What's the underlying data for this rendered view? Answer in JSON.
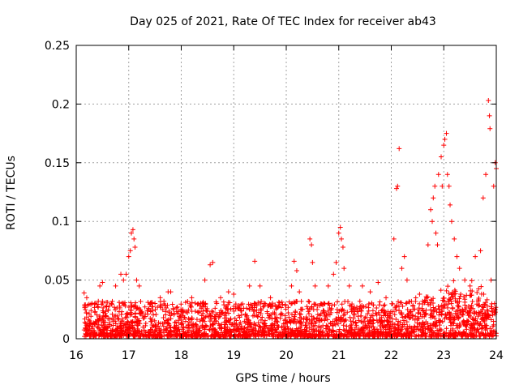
{
  "chart_data": {
    "type": "scatter",
    "title": "Day 025 of 2021, Rate Of TEC Index for receiver ab43",
    "xlabel": "GPS time / hours",
    "ylabel": "ROTI / TECUs",
    "xlim": [
      16,
      24
    ],
    "ylim": [
      0,
      0.25
    ],
    "xticks": [
      "16",
      "17",
      "18",
      "19",
      "20",
      "21",
      "22",
      "23",
      "24"
    ],
    "yticks": [
      "0",
      "0.05",
      "0.1",
      "0.15",
      "0.2",
      "0.25"
    ],
    "grid": true,
    "marker": "+",
    "color": "#ff0000",
    "series": [
      {
        "name": "ROTI",
        "points": [
          [
            16.15,
            0.039
          ],
          [
            16.2,
            0.035
          ],
          [
            16.3,
            0.03
          ],
          [
            16.45,
            0.045
          ],
          [
            16.5,
            0.048
          ],
          [
            16.75,
            0.045
          ],
          [
            16.85,
            0.055
          ],
          [
            16.9,
            0.05
          ],
          [
            16.95,
            0.055
          ],
          [
            17.0,
            0.07
          ],
          [
            17.03,
            0.075
          ],
          [
            17.05,
            0.09
          ],
          [
            17.08,
            0.093
          ],
          [
            17.1,
            0.085
          ],
          [
            17.12,
            0.078
          ],
          [
            17.15,
            0.05
          ],
          [
            17.2,
            0.045
          ],
          [
            17.5,
            0.03
          ],
          [
            17.6,
            0.035
          ],
          [
            17.75,
            0.04
          ],
          [
            17.8,
            0.04
          ],
          [
            18.2,
            0.035
          ],
          [
            18.45,
            0.05
          ],
          [
            18.55,
            0.063
          ],
          [
            18.6,
            0.065
          ],
          [
            18.75,
            0.035
          ],
          [
            18.9,
            0.04
          ],
          [
            19.0,
            0.038
          ],
          [
            19.3,
            0.045
          ],
          [
            19.4,
            0.066
          ],
          [
            19.5,
            0.045
          ],
          [
            19.7,
            0.035
          ],
          [
            20.1,
            0.045
          ],
          [
            20.15,
            0.066
          ],
          [
            20.2,
            0.058
          ],
          [
            20.25,
            0.04
          ],
          [
            20.45,
            0.085
          ],
          [
            20.48,
            0.08
          ],
          [
            20.5,
            0.065
          ],
          [
            20.55,
            0.045
          ],
          [
            20.8,
            0.045
          ],
          [
            20.9,
            0.055
          ],
          [
            20.95,
            0.065
          ],
          [
            21.0,
            0.09
          ],
          [
            21.03,
            0.095
          ],
          [
            21.05,
            0.085
          ],
          [
            21.08,
            0.078
          ],
          [
            21.1,
            0.06
          ],
          [
            21.2,
            0.045
          ],
          [
            21.45,
            0.045
          ],
          [
            21.6,
            0.04
          ],
          [
            21.75,
            0.048
          ],
          [
            21.9,
            0.035
          ],
          [
            22.05,
            0.085
          ],
          [
            22.1,
            0.128
          ],
          [
            22.12,
            0.13
          ],
          [
            22.15,
            0.162
          ],
          [
            22.2,
            0.06
          ],
          [
            22.25,
            0.07
          ],
          [
            22.3,
            0.05
          ],
          [
            22.7,
            0.08
          ],
          [
            22.75,
            0.11
          ],
          [
            22.78,
            0.1
          ],
          [
            22.8,
            0.12
          ],
          [
            22.83,
            0.13
          ],
          [
            22.85,
            0.09
          ],
          [
            22.88,
            0.08
          ],
          [
            22.9,
            0.14
          ],
          [
            22.95,
            0.155
          ],
          [
            22.97,
            0.13
          ],
          [
            23.0,
            0.165
          ],
          [
            23.02,
            0.17
          ],
          [
            23.05,
            0.175
          ],
          [
            23.07,
            0.14
          ],
          [
            23.1,
            0.13
          ],
          [
            23.12,
            0.114
          ],
          [
            23.15,
            0.1
          ],
          [
            23.2,
            0.085
          ],
          [
            23.25,
            0.07
          ],
          [
            23.3,
            0.06
          ],
          [
            23.4,
            0.05
          ],
          [
            23.5,
            0.045
          ],
          [
            23.6,
            0.07
          ],
          [
            23.7,
            0.075
          ],
          [
            23.75,
            0.12
          ],
          [
            23.8,
            0.14
          ],
          [
            23.85,
            0.203
          ],
          [
            23.87,
            0.19
          ],
          [
            23.88,
            0.179
          ],
          [
            23.9,
            0.05
          ],
          [
            23.95,
            0.13
          ],
          [
            23.98,
            0.15
          ],
          [
            24.0,
            0.145
          ]
        ]
      }
    ]
  }
}
